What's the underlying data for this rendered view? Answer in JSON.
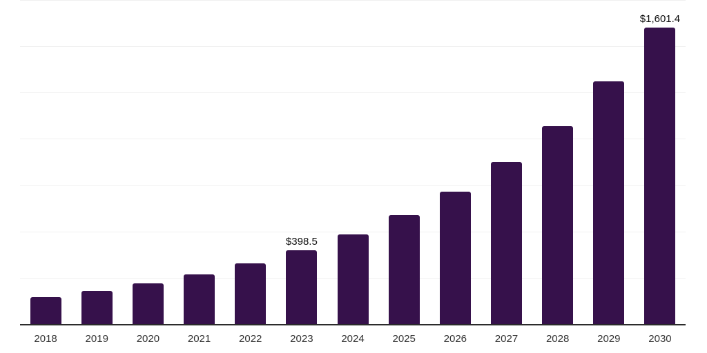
{
  "chart_data": {
    "type": "bar",
    "title": "",
    "xlabel": "",
    "ylabel": "",
    "categories": [
      "2018",
      "2019",
      "2020",
      "2021",
      "2022",
      "2023",
      "2024",
      "2025",
      "2026",
      "2027",
      "2028",
      "2029",
      "2030"
    ],
    "values": [
      147,
      179,
      218,
      267,
      326,
      398.5,
      483,
      587,
      714,
      874,
      1070,
      1310,
      1601.4
    ],
    "data_labels": [
      "",
      "",
      "",
      "",
      "",
      "$398.5",
      "",
      "",
      "",
      "",
      "",
      "",
      "$1,601.4"
    ],
    "ylim": [
      0,
      1750
    ],
    "gridline_interval": 250,
    "grid": "horizontal",
    "legend": "none",
    "colors": {
      "bar": "#36114b",
      "gridline": "#f0f0f0",
      "axis_line": "#2b2b2b",
      "tick_label": "#333333",
      "data_label": "#0d0d0d",
      "background": "#ffffff"
    }
  }
}
